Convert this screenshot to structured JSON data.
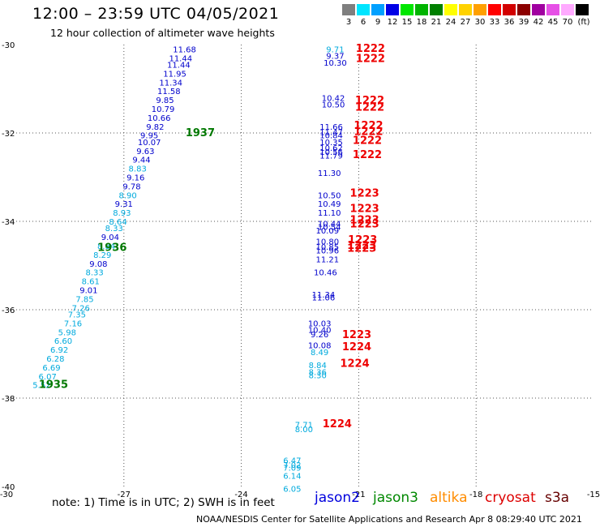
{
  "header": {
    "title": "12:00 – 23:59 UTC 04/05/2021",
    "subtitle": "12 hour collection of altimeter wave heights"
  },
  "color_scale": {
    "labels": [
      "3",
      "6",
      "9",
      "12",
      "15",
      "18",
      "21",
      "24",
      "27",
      "30",
      "33",
      "36",
      "39",
      "42",
      "45",
      "70",
      "(ft)"
    ],
    "colors": [
      "#7f7f7f",
      "#00e5ff",
      "#00a0ff",
      "#0000e6",
      "#00e600",
      "#00b400",
      "#008000",
      "#ffff00",
      "#ffd200",
      "#ffa000",
      "#ff0000",
      "#d20000",
      "#8c0000",
      "#a000a0",
      "#e650e6",
      "#ffaaff",
      "#000000"
    ]
  },
  "chart_data": {
    "type": "scatter",
    "x_ticks": [
      "-30",
      "-27",
      "-24",
      "-21",
      "-18",
      "-15"
    ],
    "y_ticks": [
      "-30",
      "-32",
      "-34",
      "-36",
      "-38",
      "-40"
    ],
    "xlim": [
      -30,
      -15
    ],
    "ylim": [
      -40,
      -30
    ],
    "grid": true,
    "points": [
      {
        "x": -25.45,
        "y": -30.1,
        "label": "11.68",
        "color": "#0000cc"
      },
      {
        "x": -25.55,
        "y": -30.3,
        "label": "11.44",
        "color": "#0000cc"
      },
      {
        "x": -25.6,
        "y": -30.45,
        "label": "11.44",
        "color": "#0000cc"
      },
      {
        "x": -25.7,
        "y": -30.65,
        "label": "11.95",
        "color": "#0000cc"
      },
      {
        "x": -25.8,
        "y": -30.85,
        "label": "11.34",
        "color": "#0000cc"
      },
      {
        "x": -25.85,
        "y": -31.05,
        "label": "11.58",
        "color": "#0000cc"
      },
      {
        "x": -25.95,
        "y": -31.25,
        "label": "9.85",
        "color": "#0000cc"
      },
      {
        "x": -26.0,
        "y": -31.45,
        "label": "10.79",
        "color": "#0000cc"
      },
      {
        "x": -26.1,
        "y": -31.65,
        "label": "10.66",
        "color": "#0000cc"
      },
      {
        "x": -26.2,
        "y": -31.85,
        "label": "9.82",
        "color": "#0000cc"
      },
      {
        "x": -26.35,
        "y": -32.05,
        "label": "9.95",
        "color": "#0000cc"
      },
      {
        "x": -26.35,
        "y": -32.2,
        "label": "10.07",
        "color": "#0000cc"
      },
      {
        "x": -26.45,
        "y": -32.4,
        "label": "9.63",
        "color": "#0000cc"
      },
      {
        "x": -26.55,
        "y": -32.6,
        "label": "9.44",
        "color": "#0000cc"
      },
      {
        "x": -26.65,
        "y": -32.8,
        "label": "8.83",
        "color": "#00aadd"
      },
      {
        "x": -26.7,
        "y": -33.0,
        "label": "9.16",
        "color": "#0000cc"
      },
      {
        "x": -26.8,
        "y": -33.2,
        "label": "9.78",
        "color": "#0000cc"
      },
      {
        "x": -26.9,
        "y": -33.4,
        "label": "8.90",
        "color": "#00aadd"
      },
      {
        "x": -27.0,
        "y": -33.6,
        "label": "9.31",
        "color": "#0000cc"
      },
      {
        "x": -27.05,
        "y": -33.8,
        "label": "8.93",
        "color": "#00aadd"
      },
      {
        "x": -27.15,
        "y": -34.0,
        "label": "8.64",
        "color": "#00aadd"
      },
      {
        "x": -27.25,
        "y": -34.15,
        "label": "8.33",
        "color": "#00aadd"
      },
      {
        "x": -27.35,
        "y": -34.35,
        "label": "9.04",
        "color": "#0000cc"
      },
      {
        "x": -27.45,
        "y": -34.55,
        "label": "8.84",
        "color": "#00aadd"
      },
      {
        "x": -27.55,
        "y": -34.75,
        "label": "8.29",
        "color": "#00aadd"
      },
      {
        "x": -27.65,
        "y": -34.95,
        "label": "9.08",
        "color": "#0000cc"
      },
      {
        "x": -27.75,
        "y": -35.15,
        "label": "8.33",
        "color": "#00aadd"
      },
      {
        "x": -27.85,
        "y": -35.35,
        "label": "8.61",
        "color": "#00aadd"
      },
      {
        "x": -27.9,
        "y": -35.55,
        "label": "9.01",
        "color": "#0000cc"
      },
      {
        "x": -28.0,
        "y": -35.75,
        "label": "7.85",
        "color": "#00aadd"
      },
      {
        "x": -28.1,
        "y": -35.95,
        "label": "7.26",
        "color": "#00aadd"
      },
      {
        "x": -28.2,
        "y": -36.1,
        "label": "7.35",
        "color": "#00aadd"
      },
      {
        "x": -28.3,
        "y": -36.3,
        "label": "7.16",
        "color": "#00aadd"
      },
      {
        "x": -28.45,
        "y": -36.5,
        "label": "5.98",
        "color": "#00aadd"
      },
      {
        "x": -28.55,
        "y": -36.7,
        "label": "6.60",
        "color": "#00aadd"
      },
      {
        "x": -28.65,
        "y": -36.9,
        "label": "6.92",
        "color": "#00aadd"
      },
      {
        "x": -28.75,
        "y": -37.1,
        "label": "6.28",
        "color": "#00aadd"
      },
      {
        "x": -28.85,
        "y": -37.3,
        "label": "6.69",
        "color": "#00aadd"
      },
      {
        "x": -28.95,
        "y": -37.5,
        "label": "6.07",
        "color": "#00aadd"
      },
      {
        "x": -29.1,
        "y": -37.7,
        "label": "5.52",
        "color": "#00aadd"
      },
      {
        "x": -21.6,
        "y": -30.1,
        "label": "9.71",
        "color": "#00aadd"
      },
      {
        "x": -21.6,
        "y": -30.25,
        "label": "9.37",
        "color": "#0000cc"
      },
      {
        "x": -21.6,
        "y": -30.4,
        "label": "10.30",
        "color": "#0000cc"
      },
      {
        "x": -21.65,
        "y": -31.2,
        "label": "10.42",
        "color": "#0000cc"
      },
      {
        "x": -21.65,
        "y": -31.35,
        "label": "10.50",
        "color": "#0000cc"
      },
      {
        "x": -21.7,
        "y": -31.85,
        "label": "11.66",
        "color": "#0000cc"
      },
      {
        "x": -21.7,
        "y": -31.97,
        "label": "11.47",
        "color": "#0000cc"
      },
      {
        "x": -21.7,
        "y": -32.05,
        "label": "10.84",
        "color": "#0000cc"
      },
      {
        "x": -21.7,
        "y": -32.2,
        "label": "10.35",
        "color": "#0000cc"
      },
      {
        "x": -21.7,
        "y": -32.33,
        "label": "10.62",
        "color": "#0000cc"
      },
      {
        "x": -21.7,
        "y": -32.42,
        "label": "10.56",
        "color": "#0000cc"
      },
      {
        "x": -21.7,
        "y": -32.5,
        "label": "11.79",
        "color": "#0000cc"
      },
      {
        "x": -21.75,
        "y": -32.9,
        "label": "11.30",
        "color": "#0000cc"
      },
      {
        "x": -21.75,
        "y": -33.4,
        "label": "10.50",
        "color": "#0000cc"
      },
      {
        "x": -21.75,
        "y": -33.6,
        "label": "10.49",
        "color": "#0000cc"
      },
      {
        "x": -21.75,
        "y": -33.8,
        "label": "11.10",
        "color": "#0000cc"
      },
      {
        "x": -21.75,
        "y": -34.05,
        "label": "10.44",
        "color": "#0000cc"
      },
      {
        "x": -21.75,
        "y": -34.12,
        "label": "10.54",
        "color": "#0000cc"
      },
      {
        "x": -21.8,
        "y": -34.2,
        "label": "10.09",
        "color": "#0000cc"
      },
      {
        "x": -21.8,
        "y": -34.45,
        "label": "10.80",
        "color": "#0000cc"
      },
      {
        "x": -21.8,
        "y": -34.57,
        "label": "10.85",
        "color": "#0000cc"
      },
      {
        "x": -21.8,
        "y": -34.65,
        "label": "10.96",
        "color": "#0000cc"
      },
      {
        "x": -21.8,
        "y": -34.85,
        "label": "11.21",
        "color": "#0000cc"
      },
      {
        "x": -21.85,
        "y": -35.15,
        "label": "10.46",
        "color": "#0000cc"
      },
      {
        "x": -21.9,
        "y": -35.65,
        "label": "11.34",
        "color": "#0000cc"
      },
      {
        "x": -21.9,
        "y": -35.72,
        "label": "11.06",
        "color": "#0000cc"
      },
      {
        "x": -22.0,
        "y": -36.3,
        "label": "10.03",
        "color": "#0000cc"
      },
      {
        "x": -22.0,
        "y": -36.45,
        "label": "10.40",
        "color": "#0000cc"
      },
      {
        "x": -22.0,
        "y": -36.55,
        "label": "9.26",
        "color": "#0000cc"
      },
      {
        "x": -22.0,
        "y": -36.8,
        "label": "10.08",
        "color": "#0000cc"
      },
      {
        "x": -22.0,
        "y": -36.95,
        "label": "8.49",
        "color": "#00aadd"
      },
      {
        "x": -22.05,
        "y": -37.25,
        "label": "8.84",
        "color": "#00aadd"
      },
      {
        "x": -22.05,
        "y": -37.4,
        "label": "8.36",
        "color": "#00aadd"
      },
      {
        "x": -22.05,
        "y": -37.48,
        "label": "8.30",
        "color": "#00aadd"
      },
      {
        "x": -22.4,
        "y": -38.6,
        "label": "7.71",
        "color": "#00aadd"
      },
      {
        "x": -22.4,
        "y": -38.7,
        "label": "8.00",
        "color": "#00aadd"
      },
      {
        "x": -22.7,
        "y": -39.4,
        "label": "6.47",
        "color": "#00aadd"
      },
      {
        "x": -22.7,
        "y": -39.5,
        "label": "7.02",
        "color": "#00aadd"
      },
      {
        "x": -22.7,
        "y": -39.57,
        "label": "7.09",
        "color": "#00aadd"
      },
      {
        "x": -22.7,
        "y": -39.75,
        "label": "6.14",
        "color": "#00aadd"
      },
      {
        "x": -22.7,
        "y": -40.05,
        "label": "6.05",
        "color": "#00aadd"
      }
    ],
    "time_labels": [
      {
        "x": -25.05,
        "y": -31.98,
        "label": "1937",
        "color": "#007800"
      },
      {
        "x": -27.3,
        "y": -34.58,
        "label": "1936",
        "color": "#007800"
      },
      {
        "x": -28.8,
        "y": -37.68,
        "label": "1935",
        "color": "#007800"
      },
      {
        "x": -20.7,
        "y": -30.07,
        "label": "1222",
        "color": "#ee0000"
      },
      {
        "x": -20.7,
        "y": -30.3,
        "label": "1222",
        "color": "#ee0000"
      },
      {
        "x": -20.72,
        "y": -31.25,
        "label": "1222",
        "color": "#ee0000"
      },
      {
        "x": -20.72,
        "y": -31.4,
        "label": "1222",
        "color": "#ee0000"
      },
      {
        "x": -20.75,
        "y": -31.82,
        "label": "1222",
        "color": "#ee0000"
      },
      {
        "x": -20.75,
        "y": -31.95,
        "label": "1222",
        "color": "#ee0000"
      },
      {
        "x": -20.78,
        "y": -32.16,
        "label": "1222",
        "color": "#ee0000"
      },
      {
        "x": -20.78,
        "y": -32.48,
        "label": "1222",
        "color": "#ee0000"
      },
      {
        "x": -20.85,
        "y": -33.35,
        "label": "1223",
        "color": "#ee0000"
      },
      {
        "x": -20.85,
        "y": -33.7,
        "label": "1223",
        "color": "#ee0000"
      },
      {
        "x": -20.85,
        "y": -33.95,
        "label": "1223",
        "color": "#ee0000"
      },
      {
        "x": -20.85,
        "y": -34.05,
        "label": "1223",
        "color": "#ee0000"
      },
      {
        "x": -20.9,
        "y": -34.4,
        "label": "1223",
        "color": "#ee0000"
      },
      {
        "x": -20.92,
        "y": -34.53,
        "label": "1223",
        "color": "#ee0000"
      },
      {
        "x": -20.92,
        "y": -34.6,
        "label": "1223",
        "color": "#ee0000"
      },
      {
        "x": -21.05,
        "y": -36.55,
        "label": "1223",
        "color": "#ee0000"
      },
      {
        "x": -21.05,
        "y": -36.83,
        "label": "1224",
        "color": "#ee0000"
      },
      {
        "x": -21.1,
        "y": -37.2,
        "label": "1224",
        "color": "#ee0000"
      },
      {
        "x": -21.55,
        "y": -38.57,
        "label": "1224",
        "color": "#ee0000"
      }
    ]
  },
  "footer": {
    "note": "note:  1) Time is in UTC; 2) SWH is in feet",
    "satellites": [
      {
        "name": "jason2",
        "color": "#0000dd"
      },
      {
        "name": "jason3",
        "color": "#008800"
      },
      {
        "name": "altika",
        "color": "#ff8c00"
      },
      {
        "name": "cryosat",
        "color": "#dd0000"
      },
      {
        "name": "s3a",
        "color": "#660000"
      }
    ],
    "credit": "NOAA/NESDIS Center for Satellite Applications and Research    Apr  8 08:29:40 UTC 2021"
  }
}
